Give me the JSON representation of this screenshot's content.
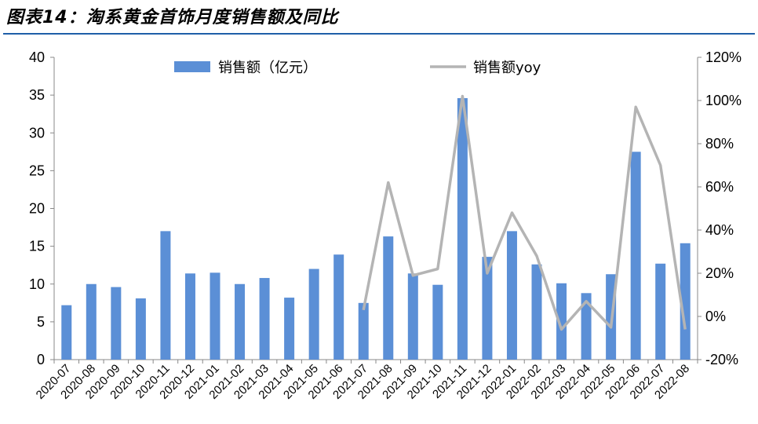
{
  "title": "图表14：淘系黄金首饰月度销售额及同比",
  "chart_data": {
    "type": "bar",
    "categories": [
      "2020-07",
      "2020-08",
      "2020-09",
      "2020-10",
      "2020-11",
      "2020-12",
      "2021-01",
      "2021-02",
      "2021-03",
      "2021-04",
      "2021-05",
      "2021-06",
      "2021-07",
      "2021-08",
      "2021-09",
      "2021-10",
      "2021-11",
      "2021-12",
      "2022-01",
      "2022-02",
      "2022-03",
      "2022-04",
      "2022-05",
      "2022-06",
      "2022-07",
      "2022-08"
    ],
    "series": [
      {
        "name": "销售额（亿元）",
        "type": "bar",
        "axis": "left",
        "color": "#5b8fd6",
        "values": [
          7.2,
          10.0,
          9.6,
          8.1,
          17.0,
          11.4,
          11.5,
          10.0,
          10.8,
          8.2,
          12.0,
          13.9,
          7.5,
          16.3,
          11.4,
          9.9,
          34.6,
          13.6,
          17.0,
          12.6,
          10.1,
          8.8,
          11.3,
          27.5,
          12.7,
          15.4
        ]
      },
      {
        "name": "销售额yoy",
        "type": "line",
        "axis": "right",
        "color": "#b4b4b4",
        "values": [
          null,
          null,
          null,
          null,
          null,
          null,
          null,
          null,
          null,
          null,
          null,
          null,
          3,
          62,
          19,
          22,
          102,
          20,
          48,
          28,
          -6,
          7,
          -5,
          97,
          70,
          -6
        ]
      }
    ],
    "y_left": {
      "min": 0,
      "max": 40,
      "ticks": [
        "0",
        "5",
        "10",
        "15",
        "20",
        "25",
        "30",
        "35",
        "40"
      ]
    },
    "y_right": {
      "min": -20,
      "max": 120,
      "ticks": [
        "-20%",
        "0%",
        "20%",
        "40%",
        "60%",
        "80%",
        "100%",
        "120%"
      ]
    },
    "legend_position": "top",
    "grid": false
  }
}
